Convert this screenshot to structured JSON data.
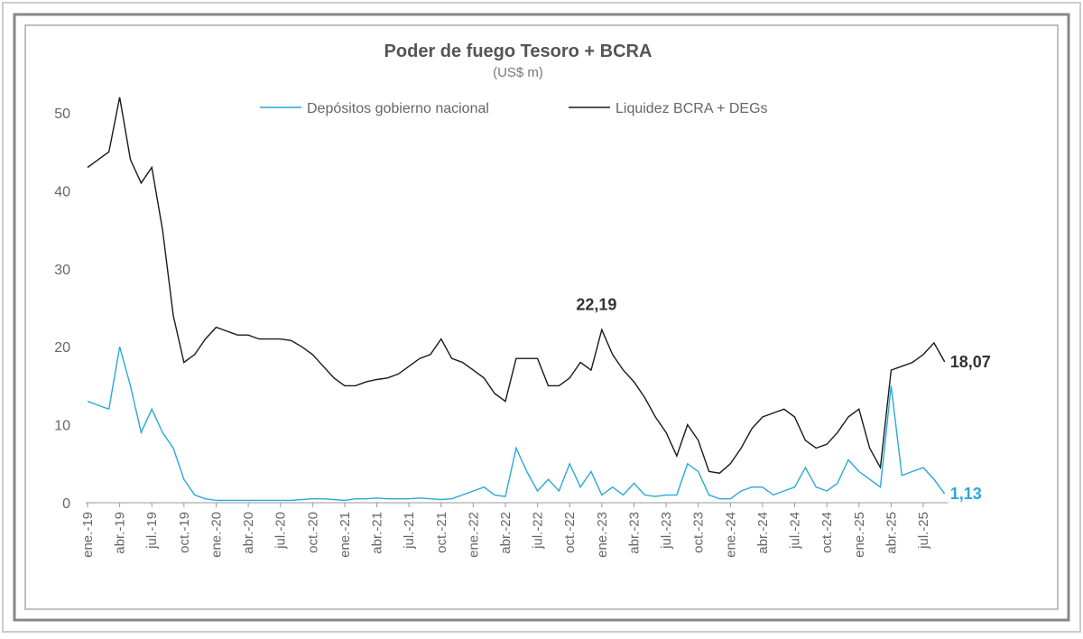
{
  "chart_data": {
    "type": "line",
    "title": "Poder de fuego Tesoro + BCRA",
    "subtitle": "(US$ m)",
    "categories": [
      "ene.-19",
      null,
      null,
      "abr.-19",
      null,
      null,
      "jul.-19",
      null,
      null,
      "oct.-19",
      null,
      null,
      "ene.-20",
      null,
      null,
      "abr.-20",
      null,
      null,
      "jul.-20",
      null,
      null,
      "oct.-20",
      null,
      null,
      "ene.-21",
      null,
      null,
      "abr.-21",
      null,
      null,
      "jul.-21",
      null,
      null,
      "oct.-21",
      null,
      null,
      "ene.-22",
      null,
      null,
      "abr.-22",
      null,
      null,
      "jul.-22",
      null,
      null,
      "oct.-22",
      null,
      null,
      "ene.-23",
      null,
      null,
      "abr.-23",
      null,
      null,
      "jul.-23",
      null,
      null,
      "oct.-23",
      null,
      null,
      "ene.-24",
      null,
      null,
      "abr.-24",
      null,
      null,
      "jul.-24",
      null,
      null,
      "oct.-24",
      null,
      null,
      "ene.-25",
      null,
      null,
      "abr.-25",
      null,
      null,
      "jul.-25",
      null,
      null
    ],
    "series": [
      {
        "name": "Depósitos gobierno nacional",
        "color": "#29a9d9",
        "values": [
          13,
          12.5,
          12,
          20,
          15,
          9,
          12,
          9,
          7,
          3,
          1,
          0.5,
          0.3,
          0.3,
          0.3,
          0.3,
          0.3,
          0.3,
          0.3,
          0.3,
          0.4,
          0.5,
          0.5,
          0.4,
          0.3,
          0.5,
          0.5,
          0.6,
          0.5,
          0.5,
          0.5,
          0.6,
          0.5,
          0.4,
          0.5,
          1,
          1.5,
          2,
          1,
          0.8,
          7,
          4,
          1.5,
          3,
          1.5,
          5,
          2,
          4,
          1,
          2,
          1,
          2.5,
          1,
          0.8,
          1,
          1,
          5,
          4,
          1,
          0.5,
          0.5,
          1.5,
          2,
          2,
          1,
          1.5,
          2,
          4.5,
          2,
          1.5,
          2.5,
          5.5,
          4,
          3,
          2,
          15,
          3.5,
          4,
          4.5,
          3,
          1.13
        ],
        "value_labels": [
          null,
          null,
          null,
          null,
          null,
          null,
          null,
          null,
          null,
          null,
          null,
          null,
          null,
          null,
          null,
          null,
          null,
          null,
          null,
          null,
          null,
          null,
          null,
          null,
          null,
          null,
          null,
          null,
          null,
          null,
          null,
          null,
          null,
          null,
          null,
          null,
          null,
          null,
          null,
          null,
          null,
          null,
          null,
          null,
          null,
          null,
          null,
          null,
          null,
          null,
          null,
          null,
          null,
          null,
          null,
          null,
          null,
          null,
          null,
          null,
          null,
          null,
          null,
          null,
          null,
          null,
          null,
          null,
          null,
          null,
          null,
          null,
          null,
          null,
          null,
          null,
          null,
          null,
          null,
          null,
          "1,13"
        ]
      },
      {
        "name": "Liquidez BCRA + DEGs",
        "color": "#1a1a1a",
        "values": [
          43,
          44,
          45,
          52,
          44,
          41,
          43,
          35,
          24,
          18,
          19,
          21,
          22.5,
          22,
          21.5,
          21.5,
          21,
          21,
          21,
          20.8,
          20,
          19,
          17.5,
          16,
          15,
          15,
          15.5,
          15.8,
          16,
          16.5,
          17.5,
          18.5,
          19,
          21,
          18.5,
          18,
          17,
          16,
          14,
          13,
          18.5,
          18.5,
          18.5,
          15,
          15,
          16,
          18,
          17,
          22.19,
          19,
          17,
          15.5,
          13.5,
          11,
          9,
          6,
          10,
          8,
          4,
          3.8,
          5,
          7,
          9.5,
          11,
          11.5,
          12,
          11,
          8,
          7,
          7.5,
          9,
          11,
          12,
          7,
          4.5,
          17,
          17.5,
          18,
          19,
          20.5,
          18.07
        ],
        "value_labels": [
          null,
          null,
          null,
          null,
          null,
          null,
          null,
          null,
          null,
          null,
          null,
          null,
          null,
          null,
          null,
          null,
          null,
          null,
          null,
          null,
          null,
          null,
          null,
          null,
          null,
          null,
          null,
          null,
          null,
          null,
          null,
          null,
          null,
          null,
          null,
          null,
          null,
          null,
          null,
          null,
          null,
          null,
          null,
          null,
          null,
          null,
          null,
          null,
          "22,19",
          null,
          null,
          null,
          null,
          null,
          null,
          null,
          null,
          null,
          null,
          null,
          null,
          null,
          null,
          null,
          null,
          null,
          null,
          null,
          null,
          null,
          null,
          null,
          null,
          null,
          null,
          null,
          null,
          null,
          null,
          null,
          "18,07"
        ]
      }
    ],
    "ylim": [
      0,
      55
    ],
    "yticks": [
      0,
      10,
      20,
      30,
      40,
      50
    ]
  }
}
